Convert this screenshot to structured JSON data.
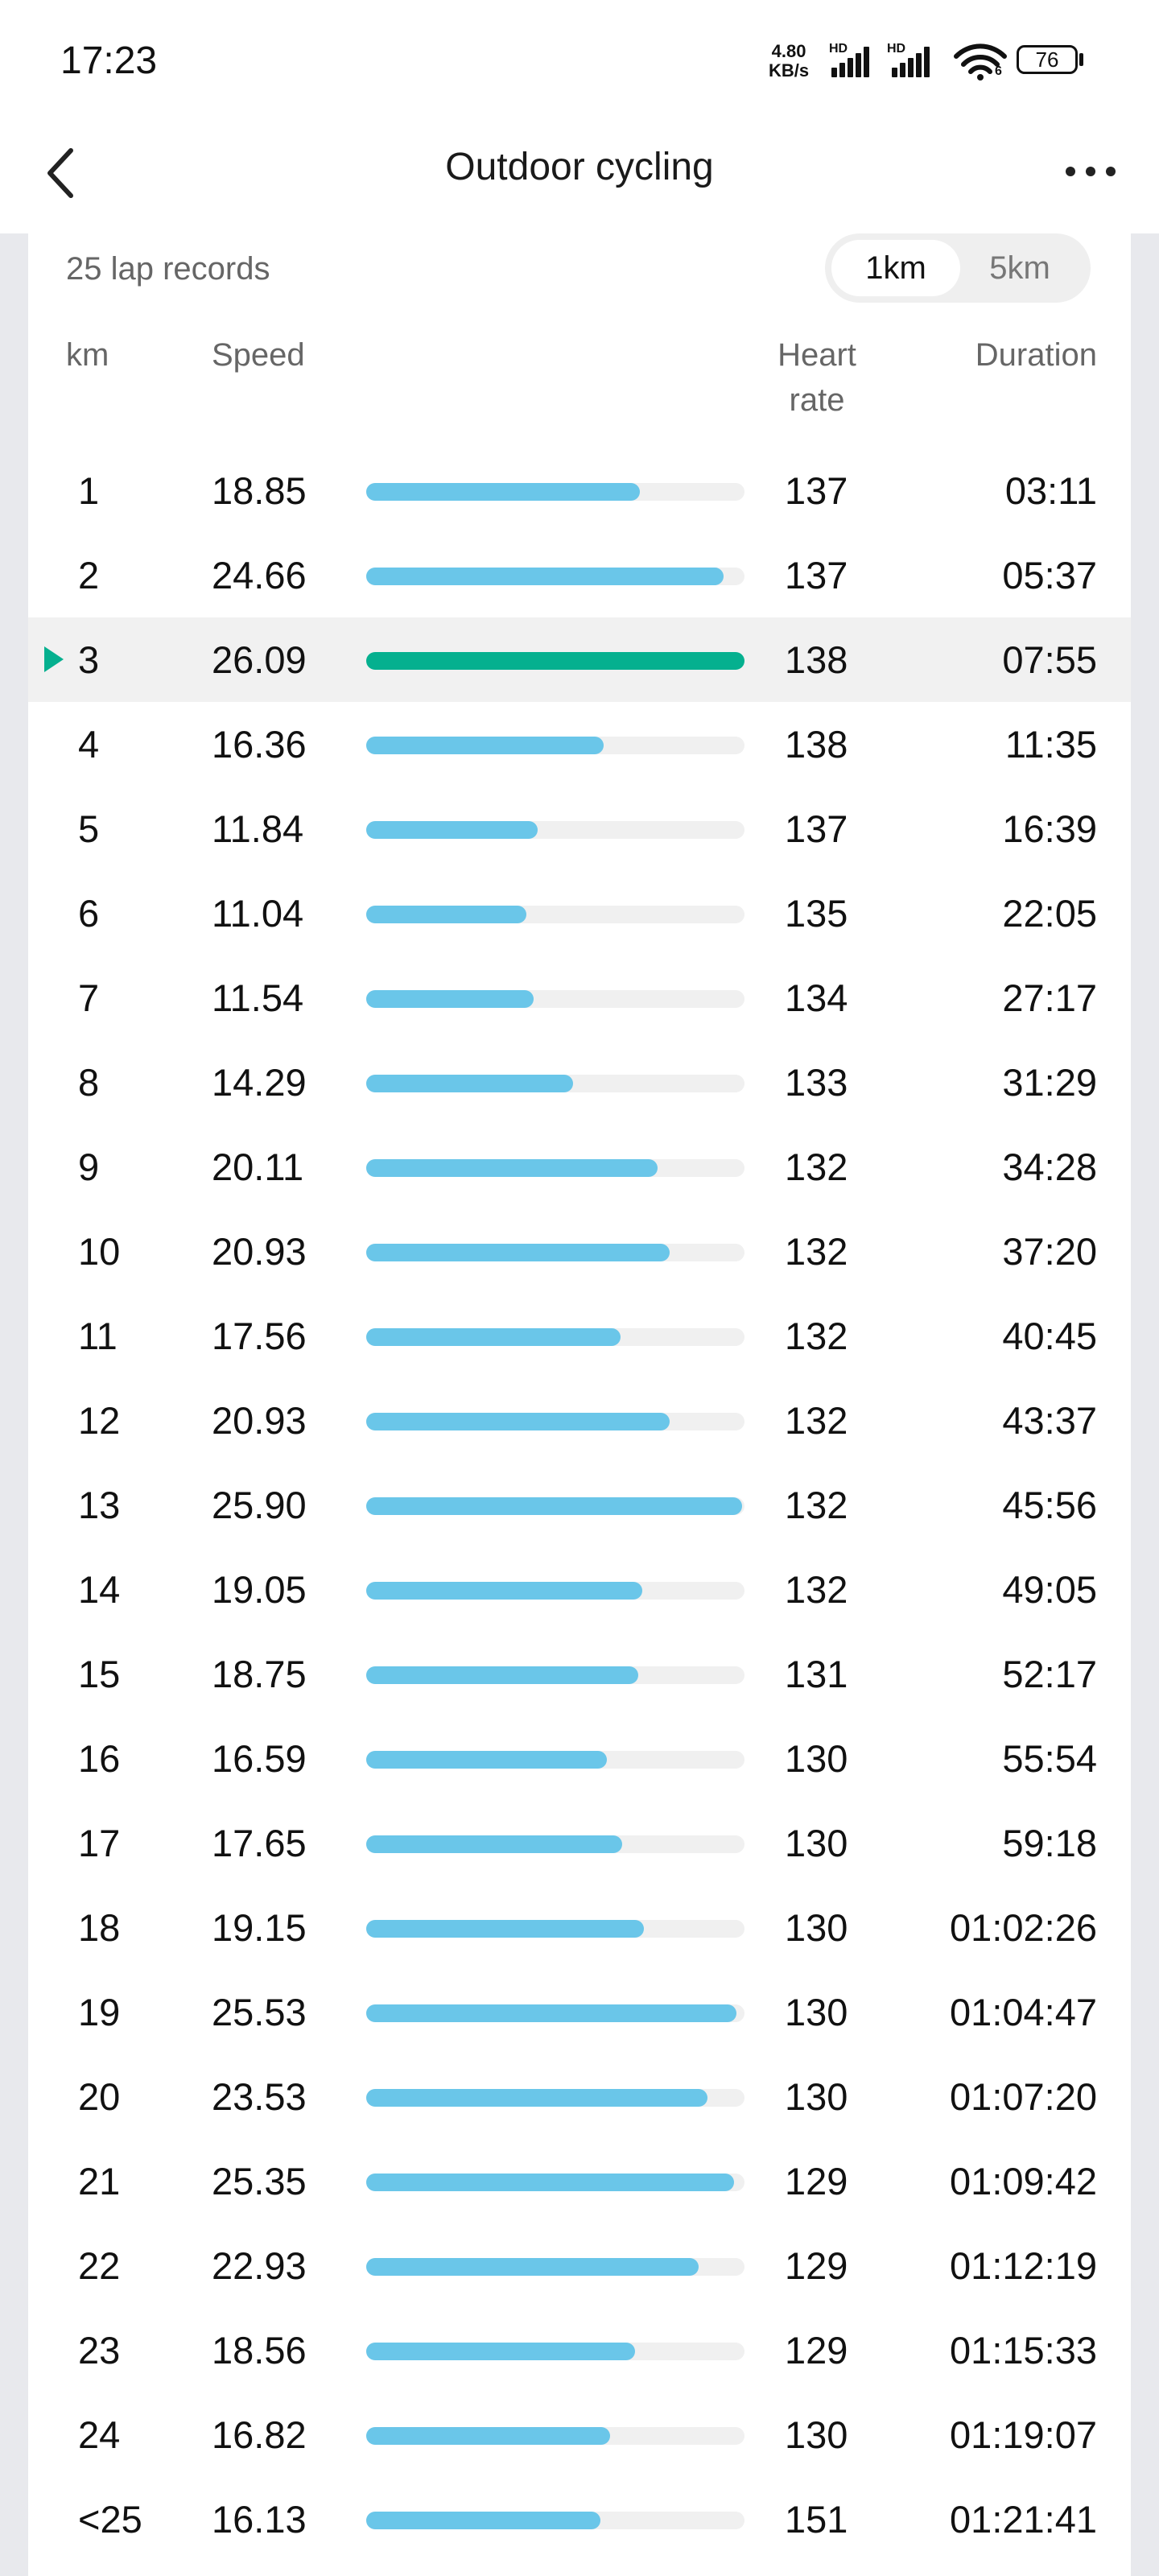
{
  "status_bar": {
    "time": "17:23",
    "net_speed_value": "4.80",
    "net_speed_unit": "KB/s",
    "hd_label_1": "HD",
    "hd_label_2": "HD",
    "wifi_sub": "6",
    "battery": "76"
  },
  "header": {
    "title": "Outdoor cycling"
  },
  "summary": {
    "lap_count": "25 lap records",
    "toggle": [
      "1km",
      "5km"
    ],
    "selected_toggle": "1km"
  },
  "columns": {
    "km": "km",
    "speed": "Speed",
    "heart_rate": "Heart rate",
    "duration": "Duration"
  },
  "colors": {
    "bar": "#6ac6e9",
    "bar_selected": "#05b08f",
    "track": "#f0f0f0"
  },
  "max_speed": 26.09,
  "selected_lap": 2,
  "laps": [
    {
      "km": "1",
      "speed": "18.85",
      "hr": "137",
      "duration": "03:11"
    },
    {
      "km": "2",
      "speed": "24.66",
      "hr": "137",
      "duration": "05:37"
    },
    {
      "km": "3",
      "speed": "26.09",
      "hr": "138",
      "duration": "07:55"
    },
    {
      "km": "4",
      "speed": "16.36",
      "hr": "138",
      "duration": "11:35"
    },
    {
      "km": "5",
      "speed": "11.84",
      "hr": "137",
      "duration": "16:39"
    },
    {
      "km": "6",
      "speed": "11.04",
      "hr": "135",
      "duration": "22:05"
    },
    {
      "km": "7",
      "speed": "11.54",
      "hr": "134",
      "duration": "27:17"
    },
    {
      "km": "8",
      "speed": "14.29",
      "hr": "133",
      "duration": "31:29"
    },
    {
      "km": "9",
      "speed": "20.11",
      "hr": "132",
      "duration": "34:28"
    },
    {
      "km": "10",
      "speed": "20.93",
      "hr": "132",
      "duration": "37:20"
    },
    {
      "km": "11",
      "speed": "17.56",
      "hr": "132",
      "duration": "40:45"
    },
    {
      "km": "12",
      "speed": "20.93",
      "hr": "132",
      "duration": "43:37"
    },
    {
      "km": "13",
      "speed": "25.90",
      "hr": "132",
      "duration": "45:56"
    },
    {
      "km": "14",
      "speed": "19.05",
      "hr": "132",
      "duration": "49:05"
    },
    {
      "km": "15",
      "speed": "18.75",
      "hr": "131",
      "duration": "52:17"
    },
    {
      "km": "16",
      "speed": "16.59",
      "hr": "130",
      "duration": "55:54"
    },
    {
      "km": "17",
      "speed": "17.65",
      "hr": "130",
      "duration": "59:18"
    },
    {
      "km": "18",
      "speed": "19.15",
      "hr": "130",
      "duration": "01:02:26"
    },
    {
      "km": "19",
      "speed": "25.53",
      "hr": "130",
      "duration": "01:04:47"
    },
    {
      "km": "20",
      "speed": "23.53",
      "hr": "130",
      "duration": "01:07:20"
    },
    {
      "km": "21",
      "speed": "25.35",
      "hr": "129",
      "duration": "01:09:42"
    },
    {
      "km": "22",
      "speed": "22.93",
      "hr": "129",
      "duration": "01:12:19"
    },
    {
      "km": "23",
      "speed": "18.56",
      "hr": "129",
      "duration": "01:15:33"
    },
    {
      "km": "24",
      "speed": "16.82",
      "hr": "130",
      "duration": "01:19:07"
    },
    {
      "km": "<25",
      "speed": "16.13",
      "hr": "151",
      "duration": "01:21:41"
    }
  ]
}
